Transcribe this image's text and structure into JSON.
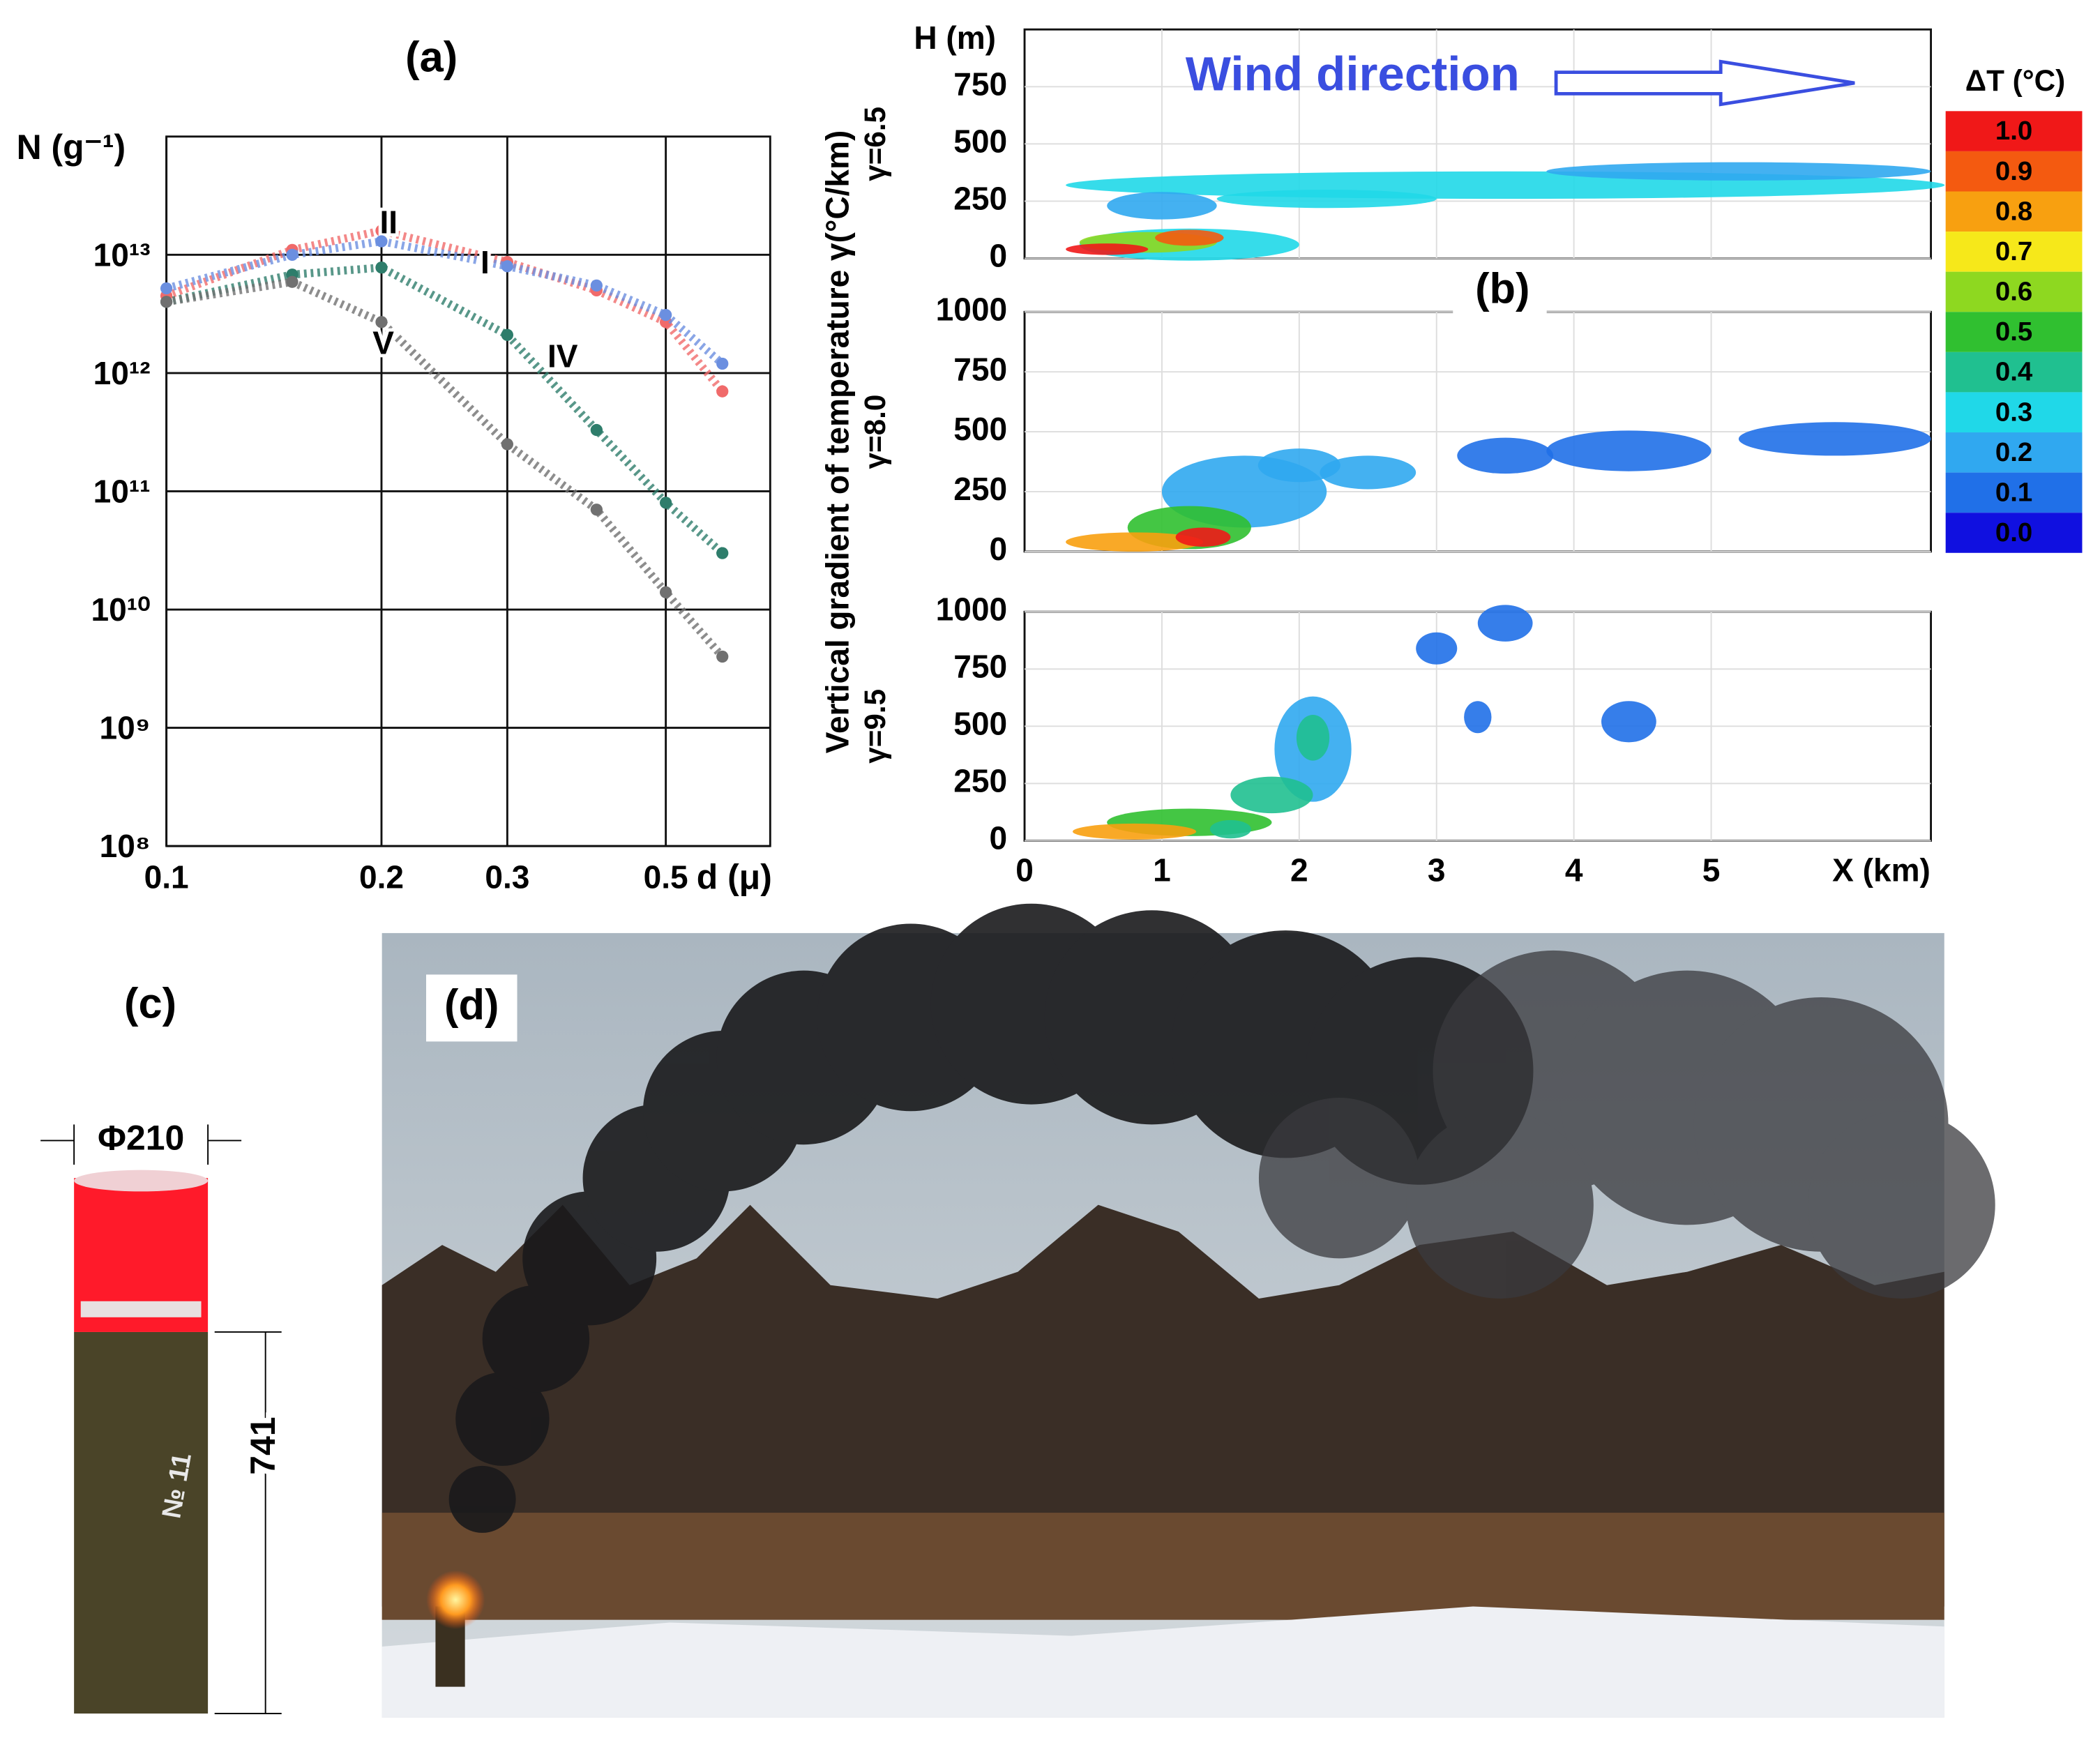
{
  "chart_data": [
    {
      "type": "scatter",
      "label": "(a)",
      "ylabel": "N (g⁻¹)",
      "xlabel": "d (μ)",
      "log_x": true,
      "log_y": true,
      "grid": true,
      "x": [
        0.1,
        0.15,
        0.2,
        0.3,
        0.4,
        0.5,
        0.6
      ],
      "series": [
        {
          "name": "II",
          "color": "#f06a6a",
          "values": [
            4500000000000,
            11000000000000,
            16000000000000,
            8700000000000,
            5000000000000,
            2700000000000,
            700000000000
          ]
        },
        {
          "name": "I",
          "color": "#6b8fe0",
          "values": [
            5200000000000,
            10000000000000,
            13000000000000,
            8000000000000,
            5500000000000,
            3100000000000,
            1200000000000
          ]
        },
        {
          "name": "IV",
          "color": "#2e7d6b",
          "values": [
            4000000000000,
            6800000000000,
            7800000000000,
            2100000000000,
            330000000000,
            80000000000,
            30000000000
          ]
        },
        {
          "name": "V",
          "color": "#707070",
          "values": [
            4000000000000,
            5900000000000,
            2700000000000,
            250000000000,
            70000000000,
            14000000000,
            4000000000
          ]
        }
      ],
      "xlim": [
        0.1,
        0.7
      ],
      "xticks": [
        0.1,
        0.2,
        0.3,
        0.5
      ],
      "ylim": [
        100000000,
        100000000000000
      ],
      "yticks": [
        {
          "value": 100000000,
          "label": "10⁸"
        },
        {
          "value": 1000000000,
          "label": "10⁹"
        },
        {
          "value": 10000000000,
          "label": "10¹⁰"
        },
        {
          "value": 100000000000,
          "label": "10¹¹"
        },
        {
          "value": 1000000000000,
          "label": "10¹²"
        },
        {
          "value": 10000000000000,
          "label": "10¹³"
        }
      ]
    },
    {
      "type": "contour",
      "label": "(b)",
      "ylabel": "Vertical gradient of temperature γ(°C/km)",
      "ytitle": "H (m)",
      "xlabel": "X (km)",
      "annotation": "Wind direction",
      "xlim": [
        0,
        6.6
      ],
      "xticks": [
        0,
        1,
        2,
        3,
        4,
        5
      ],
      "ylim": [
        0,
        1000
      ],
      "panels": [
        {
          "title": "γ=6.5",
          "yticks": [
            0,
            250,
            500,
            750
          ]
        },
        {
          "title": "γ=8.0",
          "yticks": [
            0,
            250,
            500,
            750,
            1000
          ]
        },
        {
          "title": "γ=9.5",
          "yticks": [
            0,
            250,
            500,
            750,
            1000
          ]
        }
      ],
      "colorbar": {
        "title": "ΔT (°C)",
        "ticks": [
          {
            "value": 1,
            "label": "1.0"
          },
          0.9,
          0.8,
          0.7,
          0.6,
          0.5,
          0.4,
          0.3,
          0.2,
          0.1,
          {
            "value": 0,
            "label": "0.0"
          }
        ],
        "colors": [
          "#f01818",
          "#f45a10",
          "#f8a010",
          "#f6e81a",
          "#8ed820",
          "#30c030",
          "#20c090",
          "#20d8e8",
          "#30a8f0",
          "#2070e8",
          "#1010e0"
        ]
      }
    }
  ],
  "diagram": {
    "label": "(c)",
    "diameter": "Φ210",
    "length": "741",
    "marking": "№ 11"
  },
  "photo": {
    "label": "(d)"
  }
}
